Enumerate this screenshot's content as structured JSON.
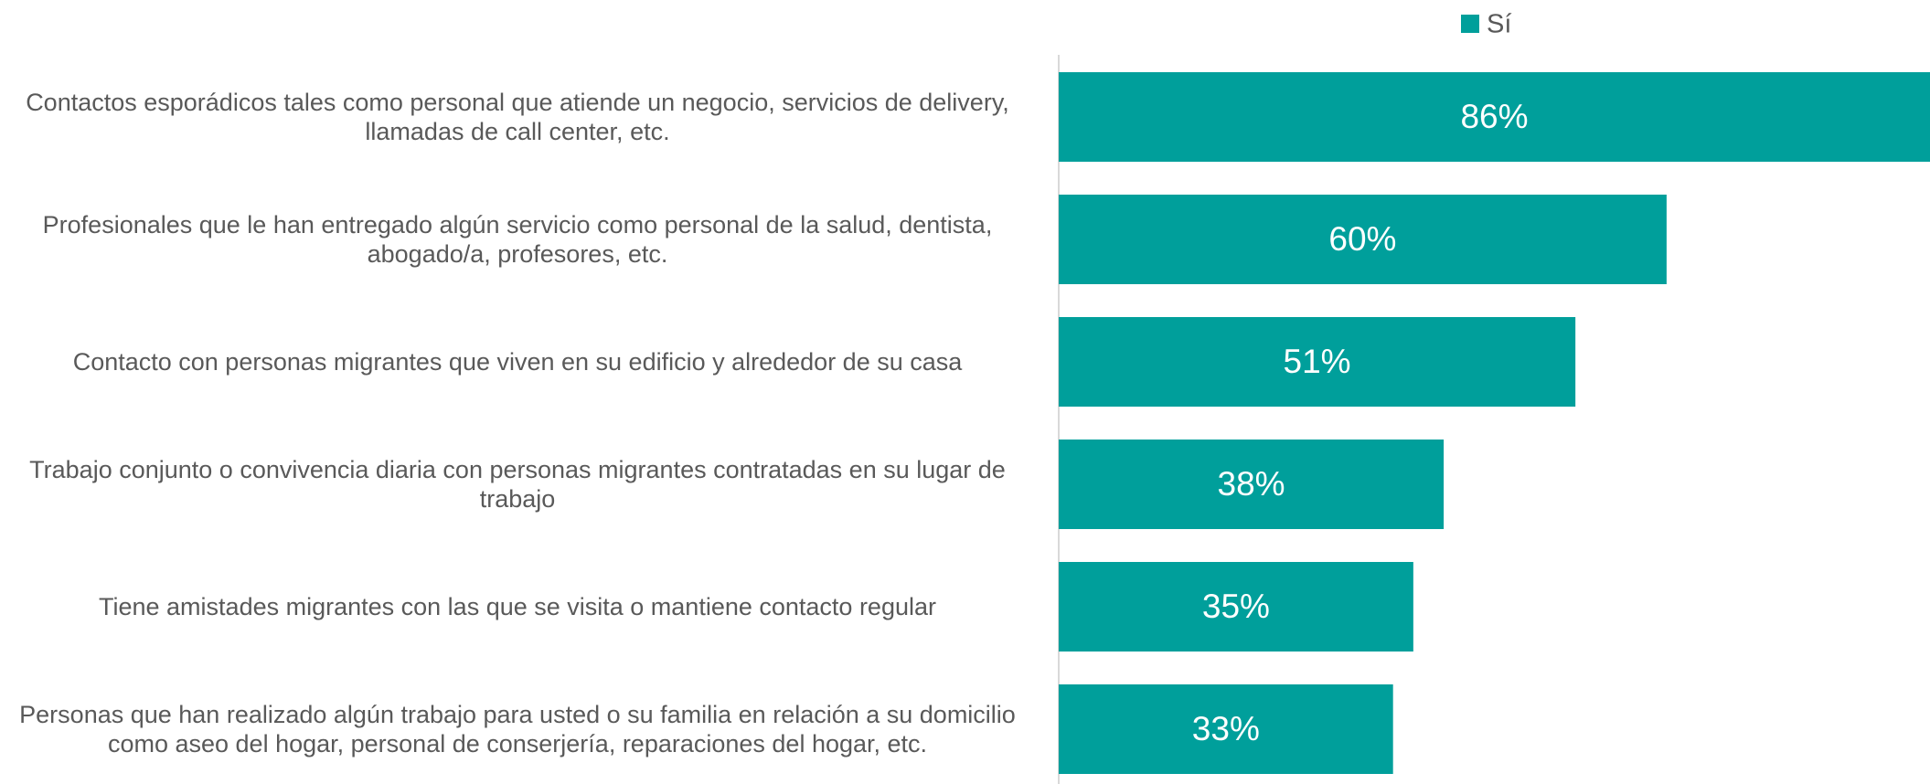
{
  "chart_data": {
    "type": "barh",
    "categories": [
      "Contactos esporádicos tales como personal que atiende un negocio, servicios de delivery, llamadas de call center, etc.",
      "Profesionales que le han entregado algún servicio como personal de la salud, dentista, abogado/a, profesores, etc.",
      "Contacto con personas migrantes que viven en su edificio y alrededor de su casa",
      "Trabajo conjunto o convivencia diaria con personas migrantes contratadas en su lugar de trabajo",
      "Tiene amistades migrantes con las que se visita o mantiene contacto regular",
      "Personas que han realizado algún trabajo para usted o su familia en relación a su domicilio como aseo del hogar, personal de conserjería, reparaciones del hogar, etc."
    ],
    "series": [
      {
        "name": "Sí",
        "color": "#009f9b",
        "values": [
          86,
          60,
          51,
          38,
          35,
          33
        ],
        "value_labels": [
          "86%",
          "60%",
          "51%",
          "38%",
          "35%",
          "33%"
        ]
      }
    ],
    "xlim": [
      0,
      86
    ],
    "legend": "top-right"
  }
}
